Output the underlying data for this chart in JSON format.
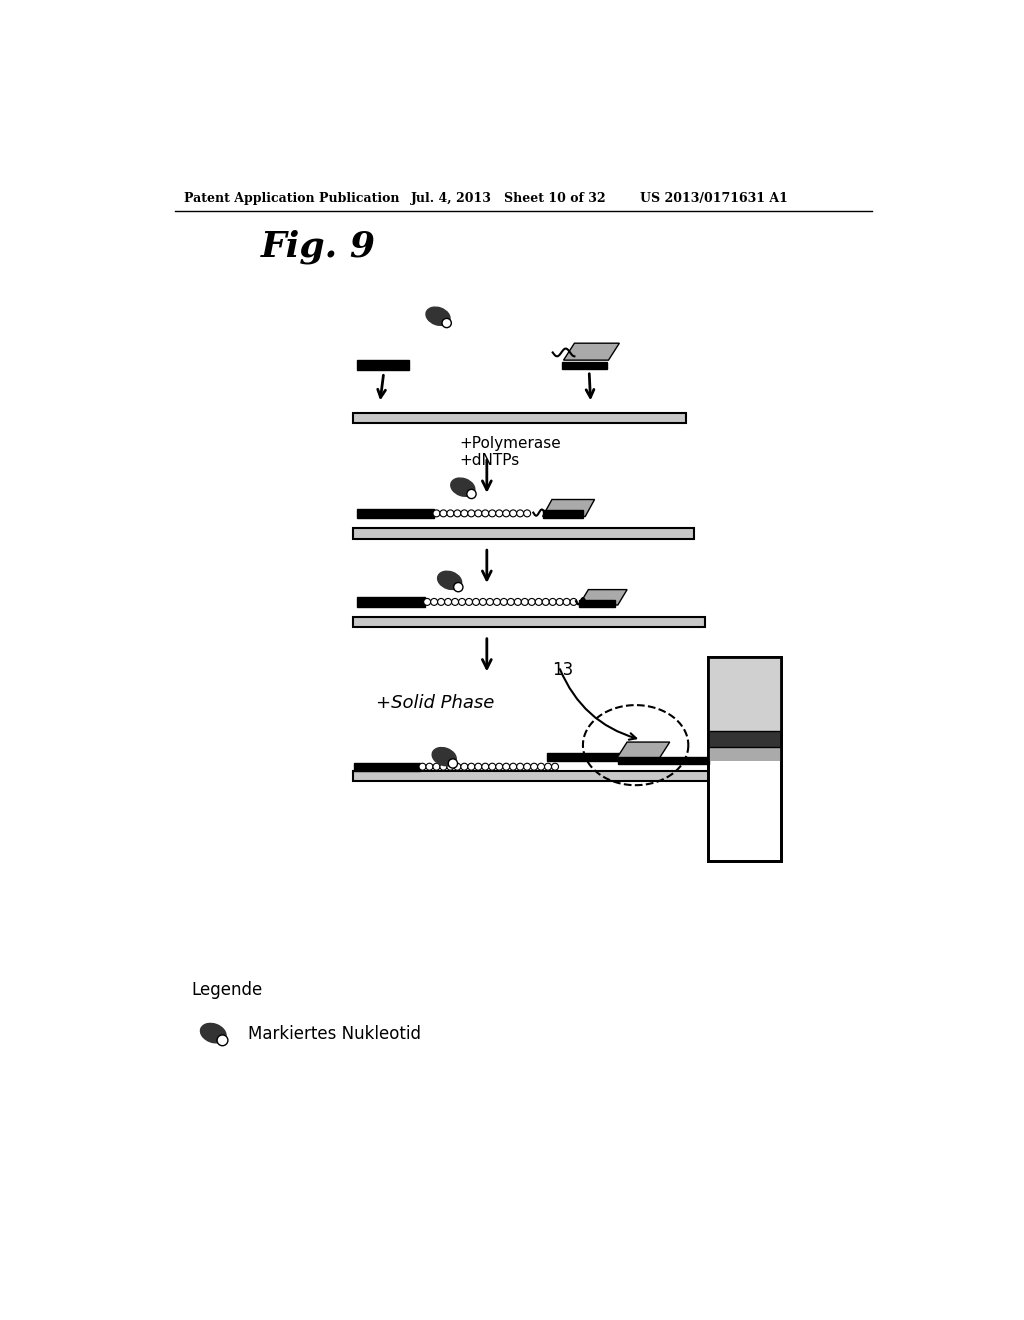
{
  "bg_color": "#ffffff",
  "header_left": "Patent Application Publication",
  "header_mid": "Jul. 4, 2013   Sheet 10 of 32",
  "header_right": "US 2013/0171631 A1",
  "fig_label": "Fig. 9",
  "label_polymerase": "+Polymerase\n+dNTPs",
  "label_solid_phase": "+Solid Phase",
  "label_13": "13",
  "legend_title": "Legende",
  "legend_text": "Markiertes Nukleotid",
  "black": "#000000",
  "light_gray": "#d0d0d0",
  "dark_gray": "#333333",
  "medium_gray": "#aaaaaa",
  "strand_gray": "#c8c8c8"
}
